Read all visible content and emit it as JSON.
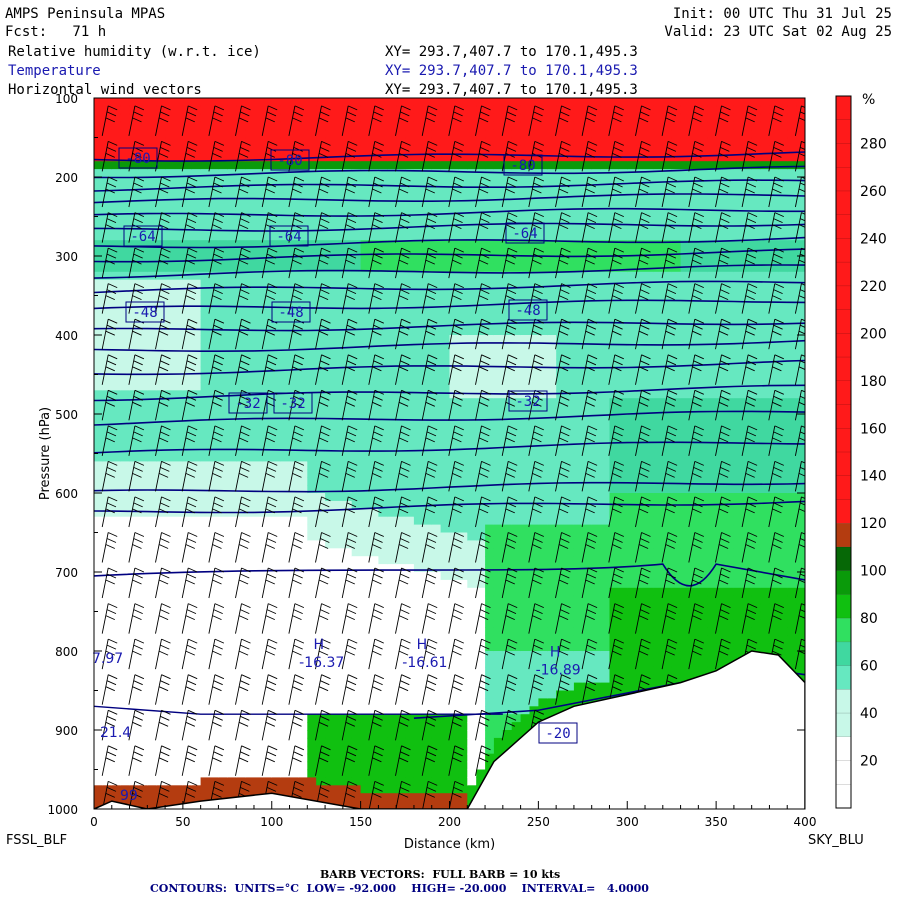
{
  "header": {
    "model": "AMPS Peninsula MPAS",
    "fcst": "Fcst:   71 h",
    "init": "Init: 00 UTC Thu 31 Jul 25",
    "valid": "Valid: 23 UTC Sat 02 Aug 25",
    "fields": [
      {
        "name": "Relative humidity (w.r.t. ice)",
        "xy": "XY= 293.7,407.7 to 170.1,495.3"
      },
      {
        "name": "Temperature",
        "xy": "XY= 293.7,407.7 to 170.1,495.3"
      },
      {
        "name": "Horizontal wind vectors",
        "xy": "XY= 293.7,407.7 to 170.1,495.3"
      }
    ]
  },
  "chart_data": {
    "type": "heatmap",
    "xlabel": "Distance (km)",
    "ylabel": "Pressure (hPa)",
    "xlim": [
      0,
      400
    ],
    "ylim": [
      1000,
      100
    ],
    "xticks": [
      0,
      50,
      100,
      150,
      200,
      250,
      300,
      350,
      400
    ],
    "yticks": [
      100,
      200,
      300,
      400,
      500,
      600,
      700,
      800,
      900,
      1000
    ],
    "start_label": "FSSL_BLF",
    "end_label": "SKY_BLU",
    "colorbar": {
      "unit": "%",
      "ticks": [
        20,
        40,
        60,
        80,
        100,
        120,
        140,
        160,
        180,
        200,
        220,
        240,
        260,
        280
      ],
      "bands": [
        {
          "min": 0,
          "max": 30,
          "color": "#ffffff"
        },
        {
          "min": 30,
          "max": 50,
          "color": "#c8f8e8"
        },
        {
          "min": 50,
          "max": 60,
          "color": "#66e8c0"
        },
        {
          "min": 60,
          "max": 70,
          "color": "#40d8a0"
        },
        {
          "min": 70,
          "max": 80,
          "color": "#30e060"
        },
        {
          "min": 80,
          "max": 90,
          "color": "#10c010"
        },
        {
          "min": 90,
          "max": 100,
          "color": "#0a9a0a"
        },
        {
          "min": 100,
          "max": 110,
          "color": "#066806"
        },
        {
          "min": 110,
          "max": 120,
          "color": "#b43c10"
        },
        {
          "min": 120,
          "max": 300,
          "color": "#ff1a1a"
        }
      ]
    },
    "temperature_labels": [
      "-80",
      "-80",
      "-80",
      "-64",
      "-64",
      "-64",
      "-48",
      "-48",
      "-48",
      "-32",
      "-32",
      "-32",
      "-20"
    ],
    "high_markers": [
      {
        "symbol": "H",
        "value": "-16.37",
        "x": 118,
        "p": 825
      },
      {
        "symbol": "H",
        "value": "-16.61",
        "x": 176,
        "p": 825
      },
      {
        "symbol": "H",
        "value": "-16.89",
        "x": 251,
        "p": 835
      }
    ],
    "edge_values": [
      "7.97",
      "21.4",
      "99"
    ],
    "terrain": [
      [
        0,
        1000
      ],
      [
        10,
        990
      ],
      [
        30,
        1000
      ],
      [
        60,
        990
      ],
      [
        100,
        980
      ],
      [
        150,
        1000
      ],
      [
        210,
        1000
      ],
      [
        225,
        940
      ],
      [
        250,
        890
      ],
      [
        270,
        870
      ],
      [
        300,
        855
      ],
      [
        330,
        840
      ],
      [
        350,
        825
      ],
      [
        370,
        800
      ],
      [
        385,
        805
      ],
      [
        400,
        840
      ]
    ],
    "colors": {
      "contour": "#000080",
      "label": "#1a1ab0",
      "barb": "#000000"
    }
  },
  "footer": {
    "barb_note": "BARB VECTORS:  FULL BARB = 10 kts",
    "contours": "CONTOURS:  UNITS=°C  LOW= -92.000    HIGH= -20.000    INTERVAL=   4.0000"
  }
}
